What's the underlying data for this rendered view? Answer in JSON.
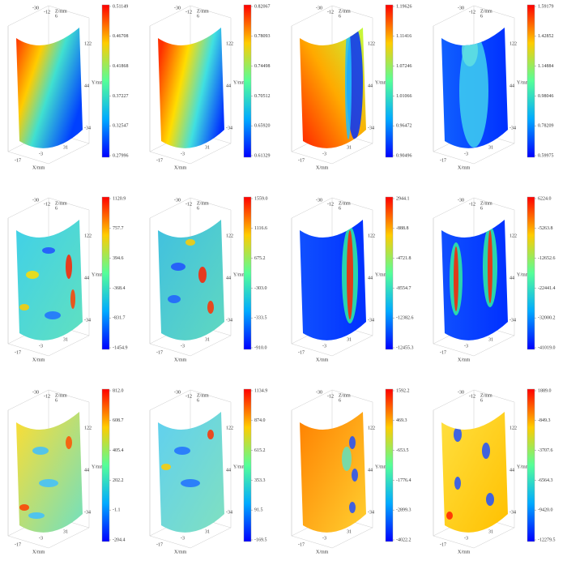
{
  "axis_labels": {
    "z": "Z/mm",
    "y": "Y/mm",
    "x": "X/mm"
  },
  "axis_ticks": {
    "z": [
      "-30",
      "-12",
      "6"
    ],
    "y": [
      "122",
      "44",
      "-34"
    ],
    "x": [
      "-17",
      "-3",
      "31"
    ]
  },
  "panels": [
    {
      "colorbar": [
        "0.51149",
        "0.46708",
        "0.41868",
        "0.37227",
        "0.32547",
        "0.27996"
      ]
    },
    {
      "colorbar": [
        "0.82067",
        "0.78093",
        "0.74498",
        "0.70512",
        "0.65920",
        "0.61329"
      ]
    },
    {
      "colorbar": [
        "1.19626",
        "1.11416",
        "1.07246",
        "1.01066",
        "0.96472",
        "0.90496"
      ]
    },
    {
      "colorbar": [
        "1.59179",
        "1.42852",
        "1.14884",
        "0.98046",
        "0.78209",
        "0.59975"
      ]
    },
    {
      "colorbar": [
        "1120.9",
        "757.7",
        "394.6",
        "-368.4",
        "-831.7",
        "-1454.9"
      ]
    },
    {
      "colorbar": [
        "1559.0",
        "1116.6",
        "675.2",
        "-303.0",
        "-333.5",
        "-910.0"
      ]
    },
    {
      "colorbar": [
        "2944.1",
        "-888.8",
        "-4721.8",
        "-8554.7",
        "-12382.6",
        "-12455.3"
      ]
    },
    {
      "colorbar": [
        "6224.0",
        "-5263.8",
        "-12652.6",
        "-22441.4",
        "-32000.2",
        "-41019.0"
      ]
    },
    {
      "colorbar": [
        "812.0",
        "608.7",
        "405.4",
        "202.2",
        "-1.1",
        "-204.4"
      ]
    },
    {
      "colorbar": [
        "1134.9",
        "874.0",
        "615.2",
        "353.3",
        "91.5",
        "-169.5"
      ]
    },
    {
      "colorbar": [
        "1592.2",
        "469.3",
        "-653.5",
        "-1776.4",
        "-2899.3",
        "-4022.2"
      ]
    },
    {
      "colorbar": [
        "1889.0",
        "-849.3",
        "-3707.6",
        "-6564.3",
        "-9420.0",
        "-12279.5"
      ]
    }
  ]
}
